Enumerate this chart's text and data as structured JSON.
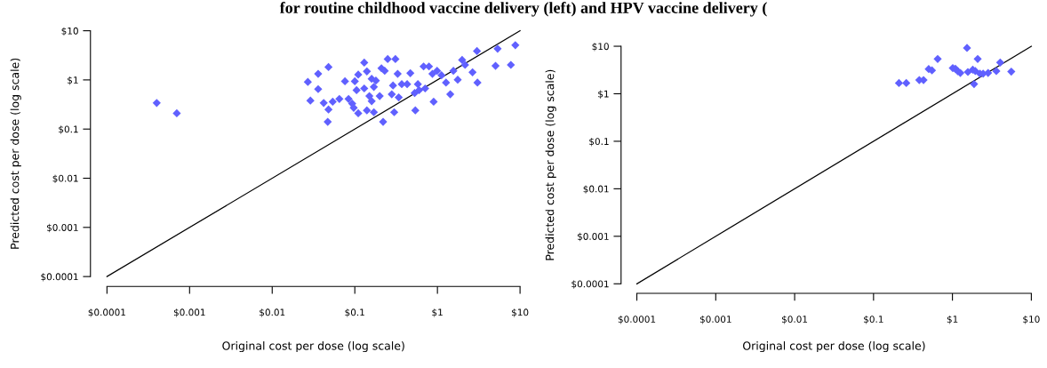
{
  "chart_data": [
    {
      "type": "scatter",
      "xlabel": "Original cost per dose (log scale)",
      "ylabel": "Predicted cost per dose (log scale)",
      "log": "xy",
      "grid": false,
      "annotations": [
        "for routine childhood vaccine delivery (left) and HPV vaccine delivery ("
      ],
      "xlim": [
        0.0001,
        10
      ],
      "ylim": [
        0.0001,
        10
      ],
      "xticks": [
        {
          "value": 0.0001,
          "label": "$0.0001"
        },
        {
          "value": 0.001,
          "label": "$0.001"
        },
        {
          "value": 0.01,
          "label": "$0.01"
        },
        {
          "value": 0.1,
          "label": "$0.1"
        },
        {
          "value": 1,
          "label": "$1"
        },
        {
          "value": 10,
          "label": "$10"
        }
      ],
      "yticks": [
        {
          "value": 0.0001,
          "label": "$0.0001"
        },
        {
          "value": 0.001,
          "label": "$0.001"
        },
        {
          "value": 0.01,
          "label": "$0.01"
        },
        {
          "value": 0.1,
          "label": "$0.1"
        },
        {
          "value": 1,
          "label": "$1"
        },
        {
          "value": 10,
          "label": "$10"
        }
      ],
      "series": [
        {
          "marker": "diamond",
          "color": "#6060ff",
          "x": [
            0.0004,
            0.0007,
            0.027,
            0.029,
            0.036,
            0.036,
            0.042,
            0.048,
            0.048,
            0.047,
            0.054,
            0.065,
            0.076,
            0.084,
            0.093,
            0.097,
            0.1,
            0.11,
            0.11,
            0.105,
            0.13,
            0.14,
            0.14,
            0.13,
            0.15,
            0.16,
            0.16,
            0.17,
            0.17,
            0.18,
            0.2,
            0.21,
            0.22,
            0.23,
            0.25,
            0.28,
            0.29,
            0.3,
            0.31,
            0.33,
            0.34,
            0.37,
            0.43,
            0.47,
            0.53,
            0.54,
            0.58,
            0.6,
            0.68,
            0.71,
            0.79,
            0.87,
            0.9,
            0.99,
            1.12,
            1.27,
            1.43,
            1.56,
            1.76,
            1.99,
            2.16,
            2.66,
            3.01,
            3.05,
            5.05,
            5.35,
            7.74,
            8.77
          ],
          "values": [
            0.34,
            0.21,
            0.91,
            0.38,
            1.33,
            0.65,
            0.34,
            1.83,
            0.25,
            0.14,
            0.36,
            0.41,
            0.94,
            0.41,
            0.33,
            0.27,
            0.94,
            1.28,
            0.21,
            0.62,
            2.25,
            1.49,
            0.24,
            0.67,
            0.47,
            1.05,
            0.37,
            0.72,
            0.22,
            0.97,
            0.47,
            1.73,
            0.14,
            1.53,
            2.66,
            0.51,
            0.77,
            0.22,
            2.66,
            1.33,
            0.44,
            0.82,
            0.82,
            1.37,
            0.54,
            0.24,
            0.82,
            0.62,
            1.88,
            0.67,
            1.88,
            1.33,
            0.36,
            1.53,
            1.24,
            0.88,
            0.51,
            1.53,
            1.01,
            2.55,
            2.02,
            1.43,
            3.86,
            0.88,
            1.93,
            4.31,
            2.02,
            5.09
          ]
        },
        {
          "type": "line",
          "color": "#000000",
          "x": [
            0.0001,
            10
          ],
          "values": [
            0.0001,
            10
          ]
        }
      ]
    },
    {
      "type": "scatter",
      "xlabel": "Original cost per dose (log scale)",
      "ylabel": "Predicted cost per dose (log scale)",
      "log": "xy",
      "grid": false,
      "xlim": [
        0.0001,
        10
      ],
      "ylim": [
        0.0001,
        10
      ],
      "xticks": [
        {
          "value": 0.0001,
          "label": "$0.0001"
        },
        {
          "value": 0.001,
          "label": "$0.001"
        },
        {
          "value": 0.01,
          "label": "$0.01"
        },
        {
          "value": 0.1,
          "label": "$0.1"
        },
        {
          "value": 1,
          "label": "$1"
        },
        {
          "value": 10,
          "label": "$10"
        }
      ],
      "yticks": [
        {
          "value": 0.0001,
          "label": "$0.0001"
        },
        {
          "value": 0.001,
          "label": "$0.001"
        },
        {
          "value": 0.01,
          "label": "$0.01"
        },
        {
          "value": 0.1,
          "label": "$0.1"
        },
        {
          "value": 1,
          "label": "$1"
        },
        {
          "value": 10,
          "label": "$10"
        }
      ],
      "series": [
        {
          "marker": "diamond",
          "color": "#6060ff",
          "x": [
            0.21,
            0.26,
            0.38,
            0.43,
            0.5,
            0.55,
            0.65,
            1.01,
            1.09,
            1.17,
            1.26,
            1.53,
            1.57,
            1.81,
            1.88,
            1.95,
            2.09,
            2.23,
            2.45,
            2.83,
            3.6,
            4.03,
            5.57
          ],
          "values": [
            1.68,
            1.68,
            1.94,
            1.94,
            3.31,
            3.11,
            5.4,
            3.48,
            3.37,
            2.97,
            2.74,
            9.23,
            2.87,
            3.21,
            1.6,
            3.01,
            5.4,
            2.65,
            2.65,
            2.74,
            3.01,
            4.54,
            2.92
          ]
        },
        {
          "type": "line",
          "color": "#000000",
          "x": [
            0.0001,
            10
          ],
          "values": [
            0.0001,
            10
          ]
        }
      ]
    }
  ]
}
